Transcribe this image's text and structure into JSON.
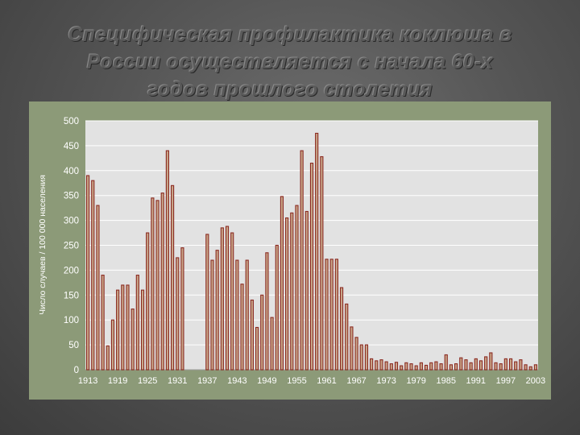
{
  "slide": {
    "title_lines": [
      "Специфическая профилактика коклюша в",
      "России осуществляется с начала 60-х",
      "годов прошлого столетия"
    ]
  },
  "chart_data": {
    "type": "bar",
    "ylabel": "Число случаев / 100 000 населения",
    "xlabel": "",
    "ylim": [
      0,
      500
    ],
    "yticks": [
      0,
      50,
      100,
      150,
      200,
      250,
      300,
      350,
      400,
      450,
      500
    ],
    "xrange": [
      1913,
      2003
    ],
    "xticks": [
      1913,
      1919,
      1925,
      1931,
      1937,
      1943,
      1949,
      1955,
      1961,
      1967,
      1973,
      1979,
      1985,
      1991,
      1997,
      2003
    ],
    "grid": true,
    "colors": {
      "bar_fill": "#c9a88a",
      "bar_edge": "#8b2a22",
      "plot_bg": "#e2e2e2",
      "grid": "#ffffff",
      "frame": "#8c9a78"
    },
    "x": [
      1913,
      1914,
      1915,
      1916,
      1917,
      1918,
      1919,
      1920,
      1921,
      1922,
      1923,
      1924,
      1925,
      1926,
      1927,
      1928,
      1929,
      1930,
      1931,
      1932,
      1937,
      1938,
      1939,
      1940,
      1941,
      1942,
      1943,
      1944,
      1945,
      1946,
      1947,
      1948,
      1949,
      1950,
      1951,
      1952,
      1953,
      1954,
      1955,
      1956,
      1957,
      1958,
      1959,
      1960,
      1961,
      1962,
      1963,
      1964,
      1965,
      1966,
      1967,
      1968,
      1969,
      1970,
      1971,
      1972,
      1973,
      1974,
      1975,
      1976,
      1977,
      1978,
      1979,
      1980,
      1981,
      1982,
      1983,
      1984,
      1985,
      1986,
      1987,
      1988,
      1989,
      1990,
      1991,
      1992,
      1993,
      1994,
      1995,
      1996,
      1997,
      1998,
      1999,
      2000,
      2001,
      2002,
      2003
    ],
    "values": [
      390,
      380,
      330,
      190,
      48,
      100,
      160,
      170,
      170,
      122,
      190,
      160,
      275,
      345,
      340,
      355,
      440,
      370,
      225,
      245,
      272,
      220,
      240,
      285,
      288,
      275,
      220,
      172,
      220,
      140,
      85,
      150,
      235,
      105,
      250,
      348,
      305,
      315,
      330,
      440,
      318,
      415,
      475,
      428,
      222,
      222,
      222,
      165,
      132,
      86,
      65,
      50,
      50,
      22,
      18,
      20,
      16,
      12,
      15,
      8,
      14,
      12,
      8,
      14,
      9,
      14,
      16,
      12,
      30,
      10,
      12,
      24,
      20,
      14,
      22,
      18,
      26,
      34,
      14,
      12,
      22,
      22,
      16,
      20,
      10,
      6,
      10
    ]
  }
}
